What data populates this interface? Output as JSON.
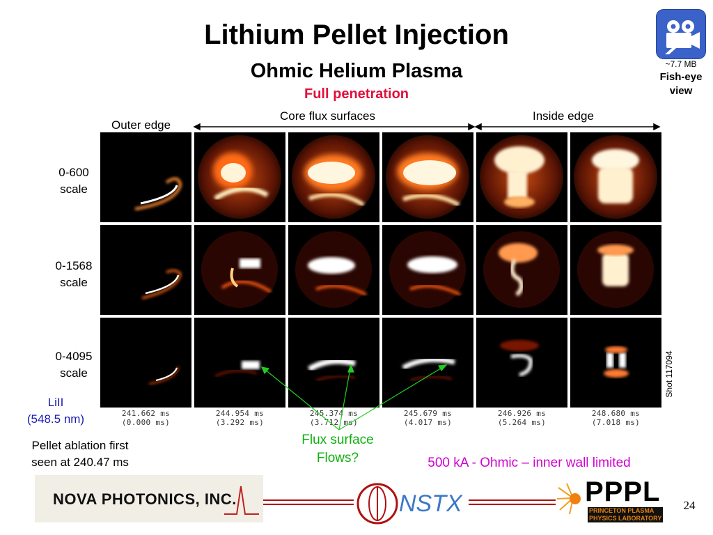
{
  "title": "Lithium Pellet Injection",
  "subtitle": "Ohmic Helium Plasma",
  "tagline": "Full penetration",
  "video": {
    "size": "~7.7 MB",
    "label_line1": "Fish-eye",
    "label_line2": "view",
    "icon": "video-camera-icon"
  },
  "headers": {
    "outer_edge": "Outer edge",
    "core": "Core flux surfaces",
    "inside": "Inside edge"
  },
  "row_labels": [
    {
      "line1": "0-600",
      "line2": "scale"
    },
    {
      "line1": "0-1568",
      "line2": "scale"
    },
    {
      "line1": "0-4095",
      "line2": "scale"
    }
  ],
  "timestamps": [
    {
      "abs": "241.662 ms",
      "rel": "(0.000 ms)"
    },
    {
      "abs": "244.954 ms",
      "rel": "(3.292 ms)"
    },
    {
      "abs": "245.374 ms",
      "rel": "(3.712 ms)"
    },
    {
      "abs": "245.679 ms",
      "rel": "(4.017 ms)"
    },
    {
      "abs": "246.926 ms",
      "rel": "(5.264 ms)"
    },
    {
      "abs": "248.680 ms",
      "rel": "(7.018 ms)"
    }
  ],
  "lii": {
    "line1": "LiII",
    "line2": "(548.5 nm)"
  },
  "pellet": {
    "line1": "Pellet ablation first",
    "line2": "seen at 240.47 ms"
  },
  "flux": {
    "line1": "Flux surface",
    "line2": "Flows?"
  },
  "ohmic": "500 kA - Ohmic – inner wall limited",
  "shot": "Shot 117094",
  "logos": {
    "nova_text": "NOVA PHOTONICS, INC.",
    "nstx_text": "NSTX",
    "pppl_text": "PPPL",
    "pppl_sub1": "PRINCETON PLASMA",
    "pppl_sub2": "PHYSICS LABORATORY"
  },
  "page_number": "24",
  "colors": {
    "tagline": "#e0103c",
    "lii": "#1a1ab0",
    "flux": "#10b010",
    "ohmic": "#d000d0",
    "video_button": "#3b62c8"
  }
}
